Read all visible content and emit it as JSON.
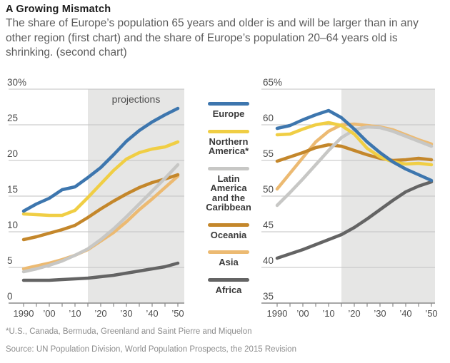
{
  "header": {
    "title": "A Growing Mismatch",
    "subtitle": "The share of Europe’s population 65 years and older is and will be larger than in any other region (first chart) and the share of Europe’s population 20–64 years old is shrinking. (second chart)"
  },
  "legend": {
    "items": [
      {
        "name": "Europe",
        "color": "#3d76ae"
      },
      {
        "name": "Northern America*",
        "color": "#f0ce44"
      },
      {
        "name": "Latin America and the Caribbean",
        "color": "#c7c7c5"
      },
      {
        "name": "Oceania",
        "color": "#c4872b"
      },
      {
        "name": "Asia",
        "color": "#ecba72"
      },
      {
        "name": "Africa",
        "color": "#646464"
      }
    ]
  },
  "style": {
    "projection_fill": "#e6e6e5",
    "grid_color": "#c2c2c2",
    "axis_color": "#8a8a8a",
    "tick_label_color": "#4d4d4d",
    "annotation_color": "#4d4d4d"
  },
  "footnotes": {
    "asterisk": "*U.S., Canada, Bermuda, Greenland and Saint Pierre and Miquelon",
    "source": "Source: UN Population Division, World Population Prospects, the 2015 Revision"
  },
  "chart_data": [
    {
      "type": "line",
      "x": [
        1990,
        1995,
        2000,
        2005,
        2010,
        2015,
        2020,
        2025,
        2030,
        2035,
        2040,
        2045,
        2050
      ],
      "series": [
        {
          "name": "Europe",
          "color": "#3d76ae",
          "values": [
            12.9,
            13.9,
            14.7,
            15.9,
            16.3,
            17.6,
            19.0,
            20.8,
            22.7,
            24.2,
            25.4,
            26.4,
            27.3
          ]
        },
        {
          "name": "Northern America*",
          "color": "#f0ce44",
          "values": [
            12.5,
            12.4,
            12.3,
            12.3,
            13.0,
            14.8,
            16.7,
            18.6,
            20.2,
            21.1,
            21.6,
            21.9,
            22.6
          ]
        },
        {
          "name": "Latin America and the Caribbean",
          "color": "#c7c7c5",
          "values": [
            4.4,
            4.8,
            5.3,
            5.9,
            6.7,
            7.6,
            8.9,
            10.4,
            12.1,
            13.9,
            15.7,
            17.5,
            19.4
          ]
        },
        {
          "name": "Oceania",
          "color": "#c4872b",
          "values": [
            8.9,
            9.3,
            9.8,
            10.3,
            10.9,
            12.0,
            13.2,
            14.3,
            15.3,
            16.2,
            16.9,
            17.4,
            18.0
          ]
        },
        {
          "name": "Asia",
          "color": "#ecba72",
          "values": [
            4.8,
            5.2,
            5.6,
            6.1,
            6.7,
            7.5,
            8.7,
            9.9,
            11.4,
            13.1,
            14.6,
            16.2,
            17.8
          ]
        },
        {
          "name": "Africa",
          "color": "#646464",
          "values": [
            3.2,
            3.2,
            3.2,
            3.3,
            3.4,
            3.5,
            3.7,
            3.9,
            4.2,
            4.5,
            4.8,
            5.1,
            5.6
          ]
        }
      ],
      "ylim": [
        0,
        30
      ],
      "yticks": [
        0,
        5,
        10,
        15,
        20,
        25,
        30
      ],
      "ytick_labels": [
        "0",
        "5",
        "10",
        "15",
        "20",
        "25",
        "30%"
      ],
      "xtick_years": [
        1990,
        2000,
        2010,
        2020,
        2030,
        2040,
        2050
      ],
      "xtick_labels": [
        "1990",
        "’00",
        "’10",
        "’20",
        "’30",
        "’40",
        "’50"
      ],
      "projection_start": 2015,
      "projections_label": "projections",
      "grid": true,
      "legend_position": "right-of-chart"
    },
    {
      "type": "line",
      "x": [
        1990,
        1995,
        2000,
        2005,
        2010,
        2015,
        2020,
        2025,
        2030,
        2035,
        2040,
        2045,
        2050
      ],
      "series": [
        {
          "name": "Europe",
          "color": "#3d76ae",
          "values": [
            59.5,
            59.9,
            60.7,
            61.4,
            62.0,
            61.0,
            59.4,
            57.6,
            56.1,
            54.8,
            53.8,
            53.0,
            52.2
          ]
        },
        {
          "name": "Northern America*",
          "color": "#f0ce44",
          "values": [
            58.6,
            58.7,
            59.4,
            60.0,
            60.3,
            59.9,
            58.7,
            56.7,
            55.5,
            54.8,
            54.5,
            54.6,
            54.4
          ]
        },
        {
          "name": "Latin America and the Caribbean",
          "color": "#c7c7c5",
          "values": [
            48.7,
            50.5,
            52.4,
            54.4,
            56.4,
            58.2,
            59.3,
            59.7,
            59.6,
            59.1,
            58.4,
            57.7,
            57.0
          ]
        },
        {
          "name": "Oceania",
          "color": "#c4872b",
          "values": [
            54.9,
            55.5,
            56.1,
            56.8,
            57.2,
            57.0,
            56.4,
            55.8,
            55.3,
            55.0,
            55.1,
            55.3,
            55.1
          ]
        },
        {
          "name": "Asia",
          "color": "#ecba72",
          "values": [
            51.0,
            53.2,
            55.4,
            57.6,
            59.1,
            60.0,
            60.1,
            59.9,
            59.7,
            59.3,
            58.6,
            57.9,
            57.3
          ]
        },
        {
          "name": "Africa",
          "color": "#646464",
          "values": [
            41.3,
            41.9,
            42.5,
            43.2,
            43.9,
            44.6,
            45.6,
            46.8,
            48.1,
            49.4,
            50.6,
            51.4,
            52.0
          ]
        }
      ],
      "ylim": [
        35,
        65
      ],
      "yticks": [
        35,
        40,
        45,
        50,
        55,
        60,
        65
      ],
      "ytick_labels": [
        "35",
        "40",
        "45",
        "50",
        "55",
        "60",
        "65%"
      ],
      "xtick_years": [
        1990,
        2000,
        2010,
        2020,
        2030,
        2040,
        2050
      ],
      "xtick_labels": [
        "1990",
        "’00",
        "’10",
        "’20",
        "’30",
        "’40",
        "’50"
      ],
      "projection_start": 2015,
      "projections_label": "",
      "grid": true,
      "legend_position": "left-of-chart"
    }
  ]
}
